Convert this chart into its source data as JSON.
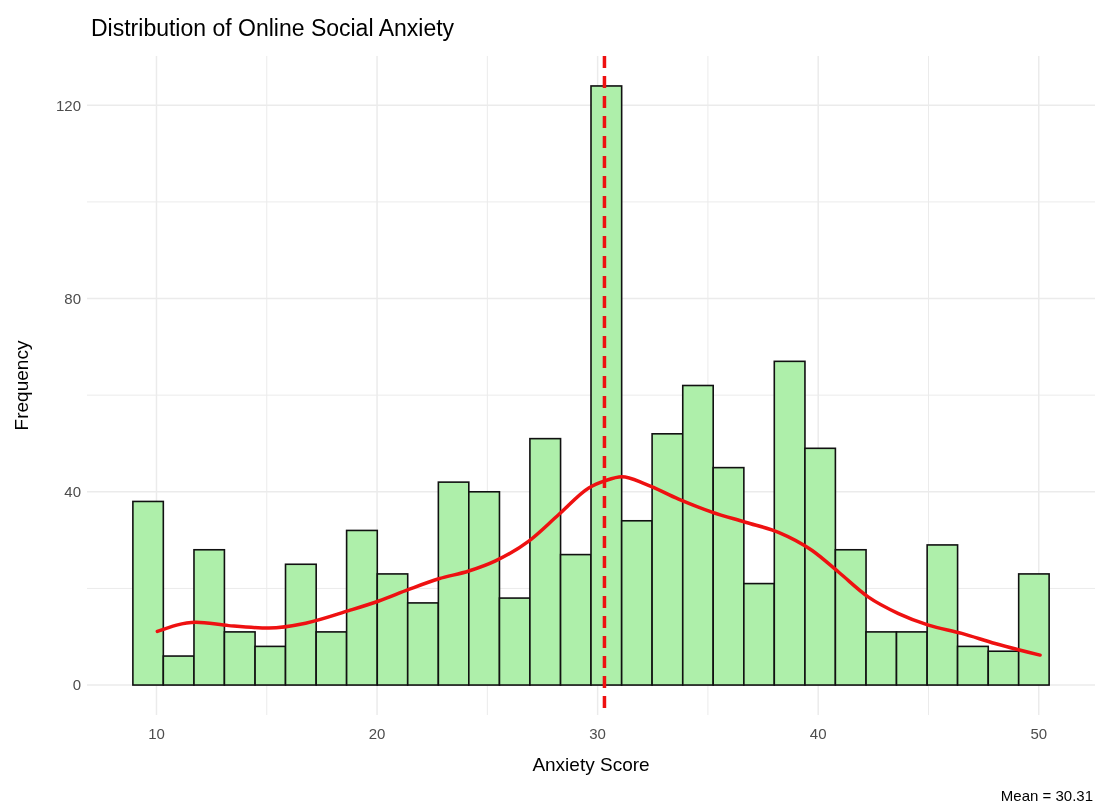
{
  "chart_data": {
    "type": "histogram",
    "title": "Distribution of Online Social Anxiety",
    "xlabel": "Anxiety Score",
    "ylabel": "Frequency",
    "bins": [
      8.93,
      10.31,
      11.7,
      13.08,
      14.47,
      15.85,
      17.24,
      18.62,
      20.01,
      21.39,
      22.78,
      24.16,
      25.55,
      26.93,
      28.32,
      29.7,
      31.09,
      32.47,
      33.86,
      35.24,
      36.63,
      38.01,
      39.4,
      40.78,
      42.17,
      43.55,
      44.94,
      46.32,
      47.71,
      49.09,
      50.47
    ],
    "values": [
      38,
      6,
      28,
      11,
      8,
      25,
      11,
      32,
      23,
      17,
      42,
      40,
      18,
      51,
      27,
      124,
      34,
      52,
      62,
      45,
      21,
      67,
      49,
      28,
      11,
      11,
      29,
      8,
      7,
      23
    ],
    "color": "#aeefaa",
    "series": [
      {
        "type": "line",
        "color": "#ee1111",
        "x": [
          10.04,
          11.78,
          13.28,
          15.1,
          16.76,
          18.72,
          20.08,
          21.44,
          22.8,
          24.16,
          25.37,
          26.88,
          28.24,
          29.6,
          30.35,
          31.1,
          32.17,
          33.67,
          35.18,
          36.7,
          38.2,
          39.71,
          40.92,
          42.28,
          43.64,
          45.0,
          46.51,
          48.02,
          50.06
        ],
        "values": [
          11.1,
          13.0,
          12.3,
          11.8,
          12.8,
          15.4,
          17.4,
          19.8,
          22.0,
          23.6,
          25.7,
          29.8,
          35.3,
          40.8,
          42.3,
          43.1,
          41.6,
          38.5,
          35.8,
          33.7,
          31.6,
          27.9,
          23.4,
          18.2,
          14.8,
          12.4,
          10.7,
          8.6,
          6.2
        ]
      }
    ],
    "ref_lines": [
      {
        "axis": "x",
        "value": 30.31,
        "color": "#ee1111",
        "line_style": "dashed"
      }
    ],
    "annotations": [
      "Mean = 30.31"
    ],
    "xlim": [
      6.85,
      52.55
    ],
    "ylim": [
      -6.2,
      130.2
    ],
    "xticks": [
      10,
      {
        "value": 15,
        "label": null
      },
      20,
      {
        "value": 25,
        "label": null
      },
      30,
      {
        "value": 35,
        "label": null
      },
      40,
      {
        "value": 45,
        "label": null
      },
      50
    ],
    "yticks": [
      0,
      {
        "value": 20,
        "label": null
      },
      40,
      {
        "value": 60,
        "label": null
      },
      80,
      {
        "value": 100,
        "label": null
      },
      120
    ],
    "grid": true
  }
}
